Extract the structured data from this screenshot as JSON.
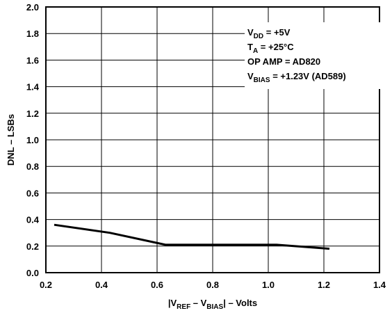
{
  "chart_data": {
    "type": "line",
    "title": "",
    "xlabel_parts": [
      "|V",
      "REF",
      " – V",
      "BIAS",
      "| – Volts"
    ],
    "ylabel": "DNL – LSBs",
    "xlim": [
      0.2,
      1.4
    ],
    "ylim": [
      0.0,
      2.0
    ],
    "x_ticks": [
      "0.2",
      "0.4",
      "0.6",
      "0.8",
      "1.0",
      "1.2",
      "1.4"
    ],
    "y_ticks": [
      "0.0",
      "0.2",
      "0.4",
      "0.6",
      "0.8",
      "1.0",
      "1.2",
      "1.4",
      "1.6",
      "1.8",
      "2.0"
    ],
    "grid": true,
    "series": [
      {
        "x": [
          0.23,
          0.43,
          0.63,
          0.83,
          1.03,
          1.22
        ],
        "y": [
          0.36,
          0.3,
          0.21,
          0.21,
          0.21,
          0.18
        ]
      }
    ],
    "annotations": {
      "vdd": [
        "V",
        "DD",
        " = +5V"
      ],
      "ta": [
        "T",
        "A",
        " = +25°C"
      ],
      "opamp": "OP AMP = AD820",
      "vbias": [
        "V",
        "BIAS",
        " = +1.23V (AD589)"
      ]
    }
  }
}
